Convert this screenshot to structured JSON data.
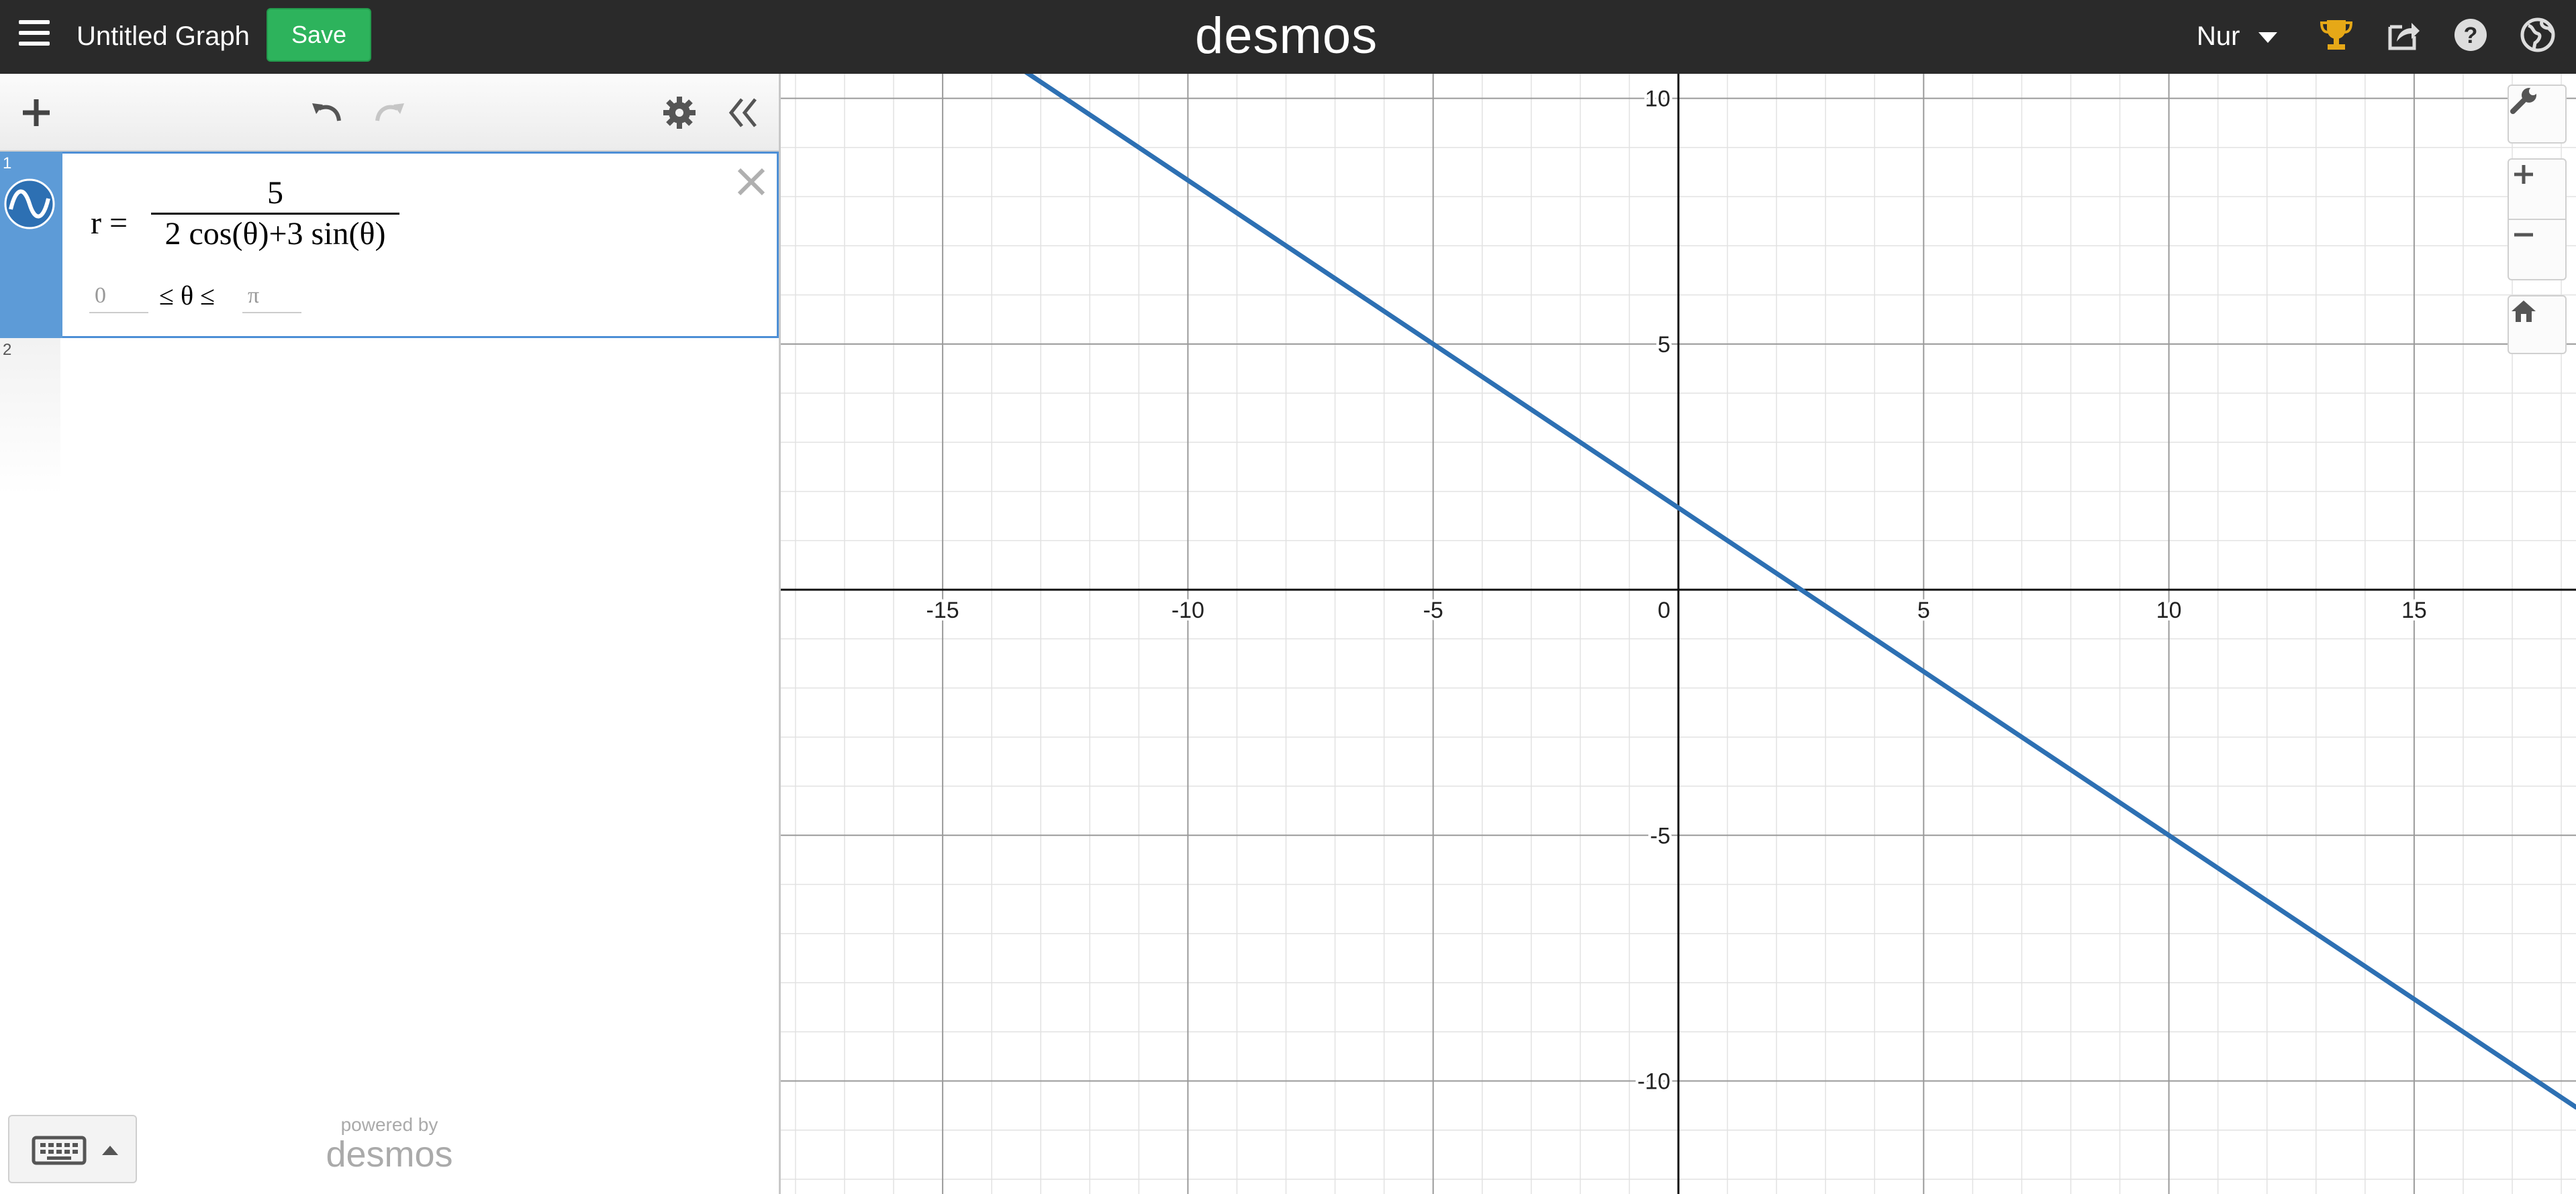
{
  "header": {
    "graph_title": "Untitled Graph",
    "save_label": "Save",
    "brand": "desmos",
    "user_name": "Nur",
    "icons": [
      "menu-icon",
      "trophy-icon",
      "share-icon",
      "help-icon",
      "globe-icon"
    ]
  },
  "expression_toolbar": {
    "icons": [
      "plus-icon",
      "undo-icon",
      "redo-icon",
      "gear-icon",
      "double-chevron-left-icon"
    ]
  },
  "expressions": [
    {
      "index": "1",
      "lhs": "r =",
      "numerator": "5",
      "denominator": "2 cos(θ)+3 sin(θ)",
      "domain_min": "0",
      "domain_mid": "≤ θ ≤",
      "domain_max": "π",
      "color": "#2d70b3"
    },
    {
      "index": "2"
    }
  ],
  "footer": {
    "powered_by": "powered by",
    "brand": "desmos"
  },
  "graph_controls": {
    "icons": [
      "wrench-icon",
      "zoom-in-icon",
      "zoom-out-icon",
      "home-icon"
    ]
  },
  "chart_data": {
    "type": "line",
    "xlim": [
      -18.3,
      18.3
    ],
    "ylim": [
      -12.3,
      10.5
    ],
    "x_ticks": [
      -15,
      -10,
      -5,
      0,
      5,
      10,
      15
    ],
    "y_ticks": [
      -10,
      -5,
      5,
      10
    ],
    "minor_step": 1,
    "major_step": 5,
    "grid": true,
    "series": [
      {
        "equation": "2x + 3y = 5",
        "color": "#2d70b3"
      }
    ]
  }
}
